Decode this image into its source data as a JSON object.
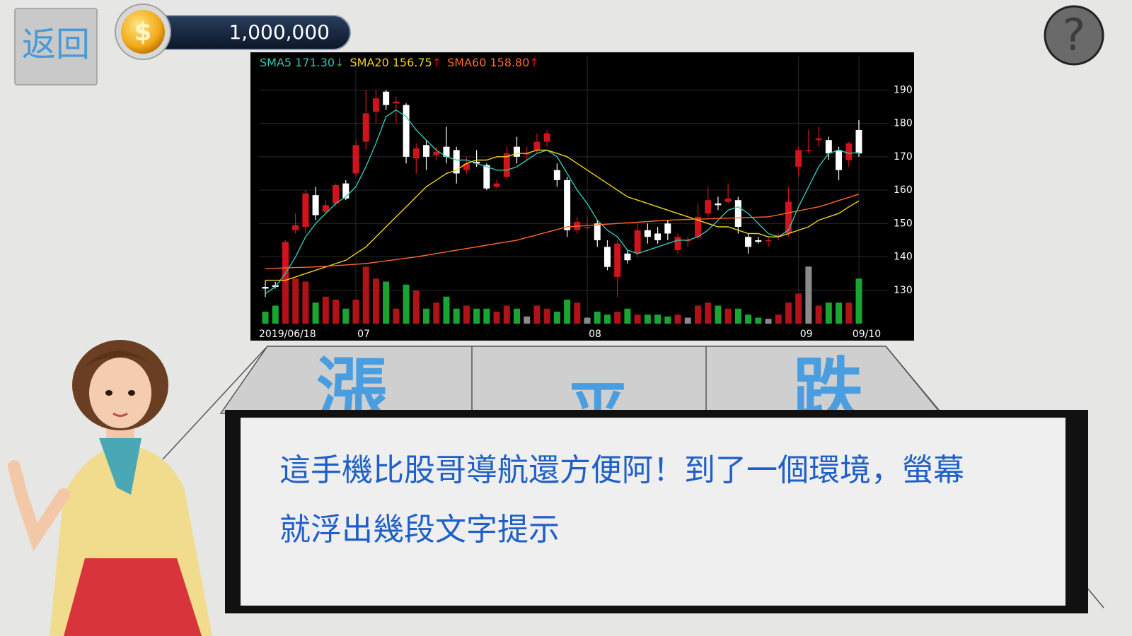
{
  "header": {
    "back": "返回",
    "coins": "1,000,000",
    "help": "?"
  },
  "chart_data": {
    "type": "candlestick",
    "categories": [
      "2019/06/18",
      null,
      null,
      null,
      null,
      null,
      null,
      null,
      null,
      "07",
      null,
      null,
      null,
      null,
      null,
      null,
      null,
      null,
      null,
      null,
      null,
      null,
      null,
      null,
      null,
      null,
      null,
      null,
      null,
      null,
      null,
      null,
      "08",
      null,
      null,
      null,
      null,
      null,
      null,
      null,
      null,
      null,
      null,
      null,
      null,
      null,
      null,
      null,
      null,
      null,
      null,
      null,
      null,
      "09",
      null,
      null,
      null,
      null,
      null,
      "09/10"
    ],
    "open": [
      131,
      131.5,
      133.5,
      148,
      149,
      158.5,
      153.5,
      156,
      162,
      165,
      174.5,
      183.5,
      189.5,
      186,
      185.5,
      169.5,
      173.5,
      170.5,
      173,
      172,
      166,
      168.5,
      167.5,
      161,
      164,
      173,
      171,
      172,
      174.5,
      166,
      163,
      148,
      149,
      150,
      143,
      134,
      141,
      141,
      148,
      147,
      150,
      142,
      145,
      146,
      153,
      156,
      156.5,
      157,
      146,
      145,
      145,
      146,
      147,
      167,
      172,
      175,
      175,
      172,
      169,
      178
    ],
    "high": [
      133,
      132.5,
      145,
      153,
      160,
      161,
      157,
      162,
      163,
      175,
      190,
      190,
      190,
      188,
      186,
      174,
      175,
      173,
      179,
      173,
      170,
      172,
      168,
      163,
      173,
      176,
      173,
      177,
      178,
      168,
      164,
      152,
      152,
      151,
      145,
      145,
      142,
      150,
      150,
      149,
      151,
      147,
      146,
      156,
      161,
      158,
      162,
      158,
      147,
      146,
      146,
      147,
      161,
      173,
      178,
      179,
      176,
      173,
      174.5,
      181
    ],
    "low": [
      128,
      130.5,
      132,
      147,
      147,
      151,
      153,
      155,
      157,
      164,
      172,
      180,
      184,
      180,
      168,
      165,
      166,
      169,
      168,
      162,
      165,
      167,
      160,
      160.5,
      163,
      168,
      169,
      171,
      173,
      161,
      146,
      147,
      148,
      143,
      136,
      128,
      138,
      140,
      144,
      144,
      145,
      141,
      143,
      145,
      152,
      154,
      156,
      147,
      141,
      144,
      143,
      145,
      146,
      164,
      171,
      173,
      169,
      163,
      167,
      170
    ],
    "close": [
      130.5,
      131,
      144.5,
      149.5,
      159,
      152.5,
      155.5,
      161.5,
      157.5,
      173.5,
      183,
      187.5,
      185.5,
      186.5,
      170,
      172.5,
      170,
      171.5,
      170,
      165,
      168,
      168,
      160.5,
      162,
      171,
      170,
      171,
      174.5,
      177,
      163,
      148,
      150.5,
      149,
      145,
      137,
      144,
      139,
      148,
      146,
      145,
      147,
      146,
      145,
      152,
      157,
      155.5,
      157.5,
      149,
      143,
      144.5,
      145,
      146.5,
      156.5,
      172,
      172,
      175.5,
      171,
      166,
      174,
      171
    ],
    "volume": [
      20,
      30,
      85,
      75,
      70,
      35,
      45,
      40,
      25,
      40,
      95,
      75,
      70,
      25,
      65,
      55,
      25,
      35,
      45,
      25,
      30,
      25,
      25,
      20,
      30,
      25,
      12,
      30,
      25,
      20,
      40,
      35,
      10,
      20,
      15,
      20,
      25,
      15,
      15,
      15,
      12,
      15,
      10,
      30,
      35,
      30,
      25,
      25,
      15,
      10,
      8,
      15,
      35,
      50,
      95,
      30,
      35,
      35,
      35,
      75
    ],
    "vlim": [
      0,
      100
    ],
    "series": [
      {
        "name": "SMA5",
        "color": "#30c8b4",
        "value_label": "171.30",
        "trend": "↓",
        "trend_color": "#22b04a",
        "values": [
          129,
          131,
          135,
          140,
          146,
          150,
          153,
          156,
          158,
          161,
          167,
          174,
          182,
          184,
          182,
          178,
          175,
          172,
          170,
          169,
          169,
          168,
          167,
          166,
          166,
          167,
          169,
          171,
          172,
          170,
          165,
          160,
          156,
          151,
          148,
          146,
          142,
          141,
          142,
          143,
          144,
          145,
          145,
          146,
          148,
          151,
          154,
          155,
          153,
          150,
          147,
          146,
          148,
          155,
          161,
          167,
          171,
          172,
          171,
          171.3
        ]
      },
      {
        "name": "SMA20",
        "color": "#f2d21a",
        "value_label": "156.75",
        "trend": "↑",
        "trend_color": "#e8141e",
        "values": [
          133,
          133,
          133,
          134,
          135,
          136,
          137,
          138,
          139,
          141,
          143,
          146,
          149,
          152,
          155,
          158,
          161,
          163,
          165,
          166,
          168,
          169,
          169,
          170,
          170,
          171,
          171,
          172,
          172,
          171,
          170,
          168,
          166,
          164,
          162,
          160,
          158,
          157,
          156,
          155,
          154,
          153,
          152,
          151,
          150,
          149,
          149,
          148,
          147,
          147,
          146,
          146,
          147,
          148,
          149,
          151,
          152,
          153,
          155,
          156.75
        ]
      },
      {
        "name": "SMA60",
        "color": "#ff6a2a",
        "value_label": "158.80",
        "trend": "↑",
        "trend_color": "#e8141e",
        "values": [
          136.5,
          136.6,
          136.7,
          136.8,
          136.9,
          137,
          137.2,
          137.4,
          137.6,
          137.8,
          138,
          138.4,
          138.8,
          139.2,
          139.6,
          140,
          140.5,
          141,
          141.5,
          142,
          142.5,
          143,
          143.5,
          144,
          144.5,
          145,
          145.8,
          146.6,
          147.4,
          148.2,
          149,
          149.2,
          149.4,
          149.6,
          149.8,
          150,
          150.2,
          150.4,
          150.6,
          150.8,
          151,
          151.1,
          151.2,
          151.3,
          151.4,
          151.5,
          151.6,
          151.7,
          151.8,
          151.9,
          152,
          152.6,
          153.2,
          153.8,
          154.4,
          155,
          155.9,
          156.9,
          157.8,
          158.8
        ]
      }
    ],
    "up_color": "#d0141c",
    "down_color": "#ffffff",
    "vol_up_color": "#b01218",
    "vol_down_color": "#1aa532",
    "vol_flat_color": "#8a8a8a",
    "ylim": [
      120,
      196
    ],
    "yticks": [
      130,
      140,
      150,
      160,
      170,
      180,
      190
    ],
    "grid": true
  },
  "choices": [
    "漲",
    "平",
    "跌"
  ],
  "dialog": {
    "lines": [
      "這手機比股哥導航還方便阿！到了一個環境，螢幕",
      "就浮出幾段文字提示"
    ]
  }
}
